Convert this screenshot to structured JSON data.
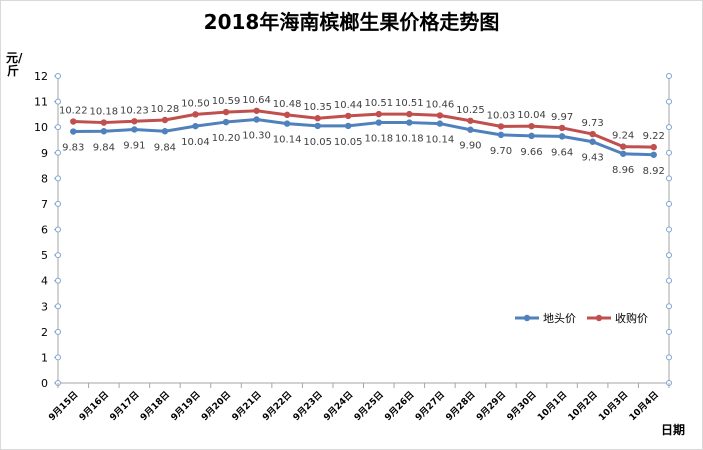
{
  "chart_data": {
    "type": "line",
    "title": "2018年海南槟榔生果价格走势图",
    "ylabel": "元/斤",
    "xlabel": "日期",
    "ylim": [
      0,
      12
    ],
    "yticks": [
      0,
      1,
      2,
      3,
      4,
      5,
      6,
      7,
      8,
      9,
      10,
      11,
      12
    ],
    "grid": false,
    "legend_position": "right",
    "categories": [
      "9月15日",
      "9月16日",
      "9月17日",
      "9月18日",
      "9月19日",
      "9月20日",
      "9月21日",
      "9月22日",
      "9月23日",
      "9月24日",
      "9月25日",
      "9月26日",
      "9月27日",
      "9月28日",
      "9月29日",
      "9月30日",
      "10月1日",
      "10月2日",
      "10月3日",
      "10月4日"
    ],
    "series": [
      {
        "name": "地头价",
        "color": "#4f81bd",
        "label_position": "below",
        "values": [
          9.83,
          9.84,
          9.91,
          9.84,
          10.04,
          10.2,
          10.3,
          10.14,
          10.05,
          10.05,
          10.18,
          10.18,
          10.14,
          9.9,
          9.7,
          9.66,
          9.64,
          9.43,
          8.96,
          8.92
        ]
      },
      {
        "name": "收购价",
        "color": "#c0504d",
        "label_position": "above",
        "values": [
          10.22,
          10.18,
          10.23,
          10.28,
          10.5,
          10.59,
          10.64,
          10.48,
          10.35,
          10.44,
          10.51,
          10.51,
          10.46,
          10.25,
          10.03,
          10.04,
          9.97,
          9.73,
          9.24,
          9.22
        ]
      }
    ]
  }
}
